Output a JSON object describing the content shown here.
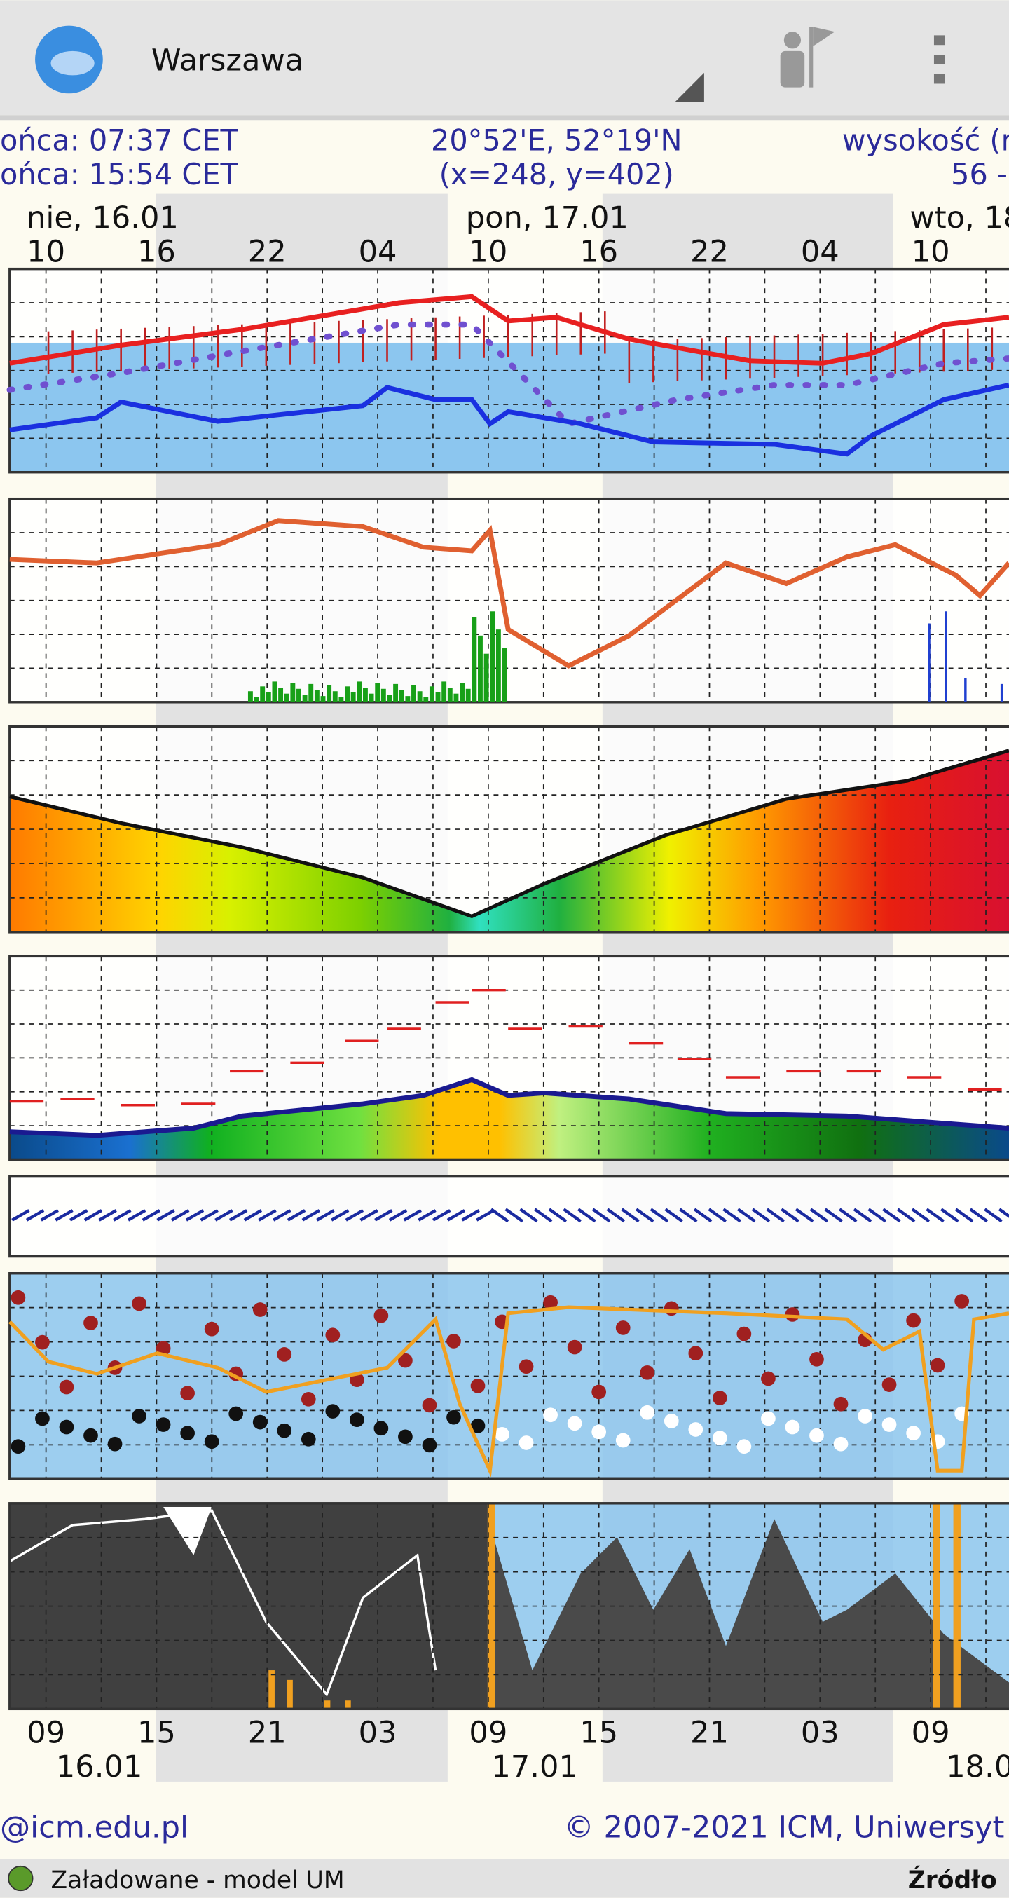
{
  "header": {
    "title": "Warszawa"
  },
  "info": {
    "sunrise": "ońca: 07:37 CET",
    "sunset": "ońca: 15:54 CET",
    "coords": "20°52'E, 52°19'N",
    "grid": "(x=248, y=402)",
    "altitude_label": "wysokość (r",
    "altitude_value": "56 -"
  },
  "top_axis": {
    "dates": [
      "nie, 16.01",
      "pon, 17.01",
      "wto, 18"
    ],
    "hours": [
      "10",
      "16",
      "22",
      "04",
      "10",
      "16",
      "22",
      "04",
      "10"
    ]
  },
  "bottom_axis": {
    "hours": [
      "09",
      "15",
      "21",
      "03",
      "09",
      "15",
      "21",
      "03",
      "09"
    ],
    "dates": [
      "16.01",
      "17.01",
      "18.0"
    ]
  },
  "footer": {
    "left": "@icm.edu.pl",
    "right": "© 2007-2021 ICM, Uniwersyt"
  },
  "status": {
    "text": "Załadowane - model UM",
    "link": "Źródło"
  }
}
